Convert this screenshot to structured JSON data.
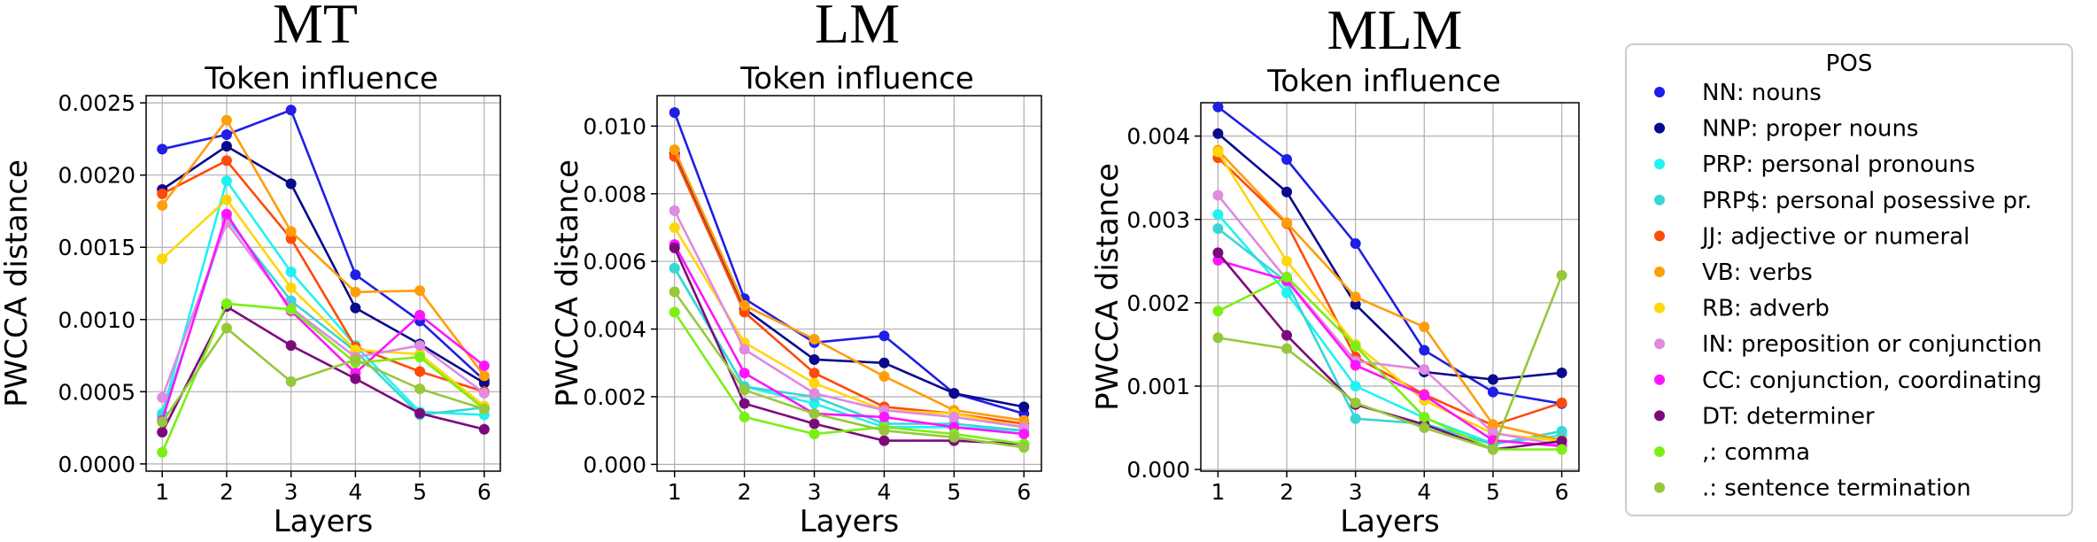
{
  "legend": {
    "title": "POS",
    "entries": [
      {
        "label": "NN: nouns",
        "color": "#1f1fe6"
      },
      {
        "label": "NNP: proper nouns",
        "color": "#0a0a8c"
      },
      {
        "label": "PRP: personal pronouns",
        "color": "#1ff2f2"
      },
      {
        "label": "PRP$: personal posessive pr.",
        "color": "#38d6d6"
      },
      {
        "label": "JJ: adjective or numeral",
        "color": "#ff4a0a"
      },
      {
        "label": "VB: verbs",
        "color": "#ff9d0a"
      },
      {
        "label": "RB: adverb",
        "color": "#ffd60a"
      },
      {
        "label": "IN: preposition or conjunction",
        "color": "#e08ae0"
      },
      {
        "label": "CC: conjunction, coordinating",
        "color": "#ff14ff"
      },
      {
        "label": "DT: determiner",
        "color": "#7d0a7d"
      },
      {
        "label": ",: comma",
        "color": "#7aef14"
      },
      {
        "label": ".: sentence termination",
        "color": "#96c83a"
      }
    ]
  },
  "chart_data": [
    {
      "type": "line",
      "title": "MT",
      "subtitle": "Token influence",
      "xlabel": "Layers",
      "ylabel": "PWCCA distance",
      "x": [
        1,
        2,
        3,
        4,
        5,
        6
      ],
      "xticks": [
        "1",
        "2",
        "3",
        "4",
        "5",
        "6"
      ],
      "ylim": [
        -5e-05,
        0.00255
      ],
      "yticks": [
        0.0,
        0.0005,
        0.001,
        0.0015,
        0.002,
        0.0025
      ],
      "ytick_labels": [
        "0.0000",
        "0.0005",
        "0.0010",
        "0.0015",
        "0.0020",
        "0.0025"
      ],
      "grid": true,
      "series": [
        {
          "name": "NN: nouns",
          "values": [
            0.00218,
            0.00228,
            0.00245,
            0.00131,
            0.00099,
            0.00058
          ]
        },
        {
          "name": "NNP: proper nouns",
          "values": [
            0.0019,
            0.0022,
            0.00194,
            0.00108,
            0.00083,
            0.00056
          ]
        },
        {
          "name": "PRP: personal pronouns",
          "values": [
            0.00035,
            0.00196,
            0.00133,
            0.00082,
            0.00036,
            0.00034
          ]
        },
        {
          "name": "PRP$: personal posessive pr.",
          "values": [
            0.00033,
            0.0017,
            0.00113,
            0.00078,
            0.00034,
            0.00039
          ]
        },
        {
          "name": "JJ: adjective or numeral",
          "values": [
            0.00187,
            0.0021,
            0.00156,
            0.00081,
            0.00064,
            0.0005
          ]
        },
        {
          "name": "VB: verbs",
          "values": [
            0.00179,
            0.00238,
            0.00161,
            0.00119,
            0.0012,
            0.00061
          ]
        },
        {
          "name": "RB: adverb",
          "values": [
            0.00142,
            0.00183,
            0.00122,
            0.00079,
            0.00076,
            0.0004
          ]
        },
        {
          "name": "IN: preposition or conjunction",
          "values": [
            0.00046,
            0.00167,
            0.00108,
            0.00074,
            0.00082,
            0.00049
          ]
        },
        {
          "name": "CC: conjunction, coordinating",
          "values": [
            0.0003,
            0.00173,
            0.00106,
            0.00063,
            0.00103,
            0.00068
          ]
        },
        {
          "name": "DT: determiner",
          "values": [
            0.00022,
            0.00109,
            0.00082,
            0.00059,
            0.00035,
            0.00024
          ]
        },
        {
          "name": ",: comma",
          "values": [
            8e-05,
            0.00111,
            0.00107,
            0.0007,
            0.00074,
            0.00038
          ]
        },
        {
          "name": ".: sentence termination",
          "values": [
            0.00029,
            0.00094,
            0.00057,
            0.00072,
            0.00052,
            0.00038
          ]
        }
      ]
    },
    {
      "type": "line",
      "title": "LM",
      "subtitle": "Token influence",
      "xlabel": "Layers",
      "ylabel": "PWCCA distance",
      "x": [
        1,
        2,
        3,
        4,
        5,
        6
      ],
      "xticks": [
        "1",
        "2",
        "3",
        "4",
        "5",
        "6"
      ],
      "ylim": [
        -0.0002,
        0.0109
      ],
      "yticks": [
        0.0,
        0.002,
        0.004,
        0.006,
        0.008,
        0.01
      ],
      "ytick_labels": [
        "0.000",
        "0.002",
        "0.004",
        "0.006",
        "0.008",
        "0.010"
      ],
      "grid": true,
      "series": [
        {
          "name": "NN: nouns",
          "values": [
            0.0104,
            0.0049,
            0.0036,
            0.0038,
            0.0021,
            0.0015
          ]
        },
        {
          "name": "NNP: proper nouns",
          "values": [
            0.0092,
            0.0046,
            0.0031,
            0.003,
            0.0021,
            0.0017
          ]
        },
        {
          "name": "PRP: personal pronouns",
          "values": [
            0.0058,
            0.0023,
            0.0018,
            0.0011,
            0.0011,
            0.001
          ]
        },
        {
          "name": "PRP$: personal posessive pr.",
          "values": [
            0.0058,
            0.0023,
            0.002,
            0.0012,
            0.0012,
            0.001
          ]
        },
        {
          "name": "JJ: adjective or numeral",
          "values": [
            0.0091,
            0.0045,
            0.0027,
            0.0017,
            0.0015,
            0.0012
          ]
        },
        {
          "name": "VB: verbs",
          "values": [
            0.0093,
            0.0047,
            0.0037,
            0.0026,
            0.0016,
            0.0013
          ]
        },
        {
          "name": "RB: adverb",
          "values": [
            0.007,
            0.0036,
            0.0024,
            0.0016,
            0.0015,
            0.0011
          ]
        },
        {
          "name": "IN: preposition or conjunction",
          "values": [
            0.0075,
            0.0034,
            0.0021,
            0.0016,
            0.0014,
            0.0011
          ]
        },
        {
          "name": "CC: conjunction, coordinating",
          "values": [
            0.0065,
            0.0027,
            0.0015,
            0.0014,
            0.0011,
            0.0009
          ]
        },
        {
          "name": "DT: determiner",
          "values": [
            0.0064,
            0.0018,
            0.0012,
            0.0007,
            0.0007,
            0.0006
          ]
        },
        {
          "name": ",: comma",
          "values": [
            0.0045,
            0.0014,
            0.0009,
            0.0011,
            0.0009,
            0.0006
          ]
        },
        {
          "name": ".: sentence termination",
          "values": [
            0.0051,
            0.0022,
            0.0015,
            0.001,
            0.0008,
            0.0005
          ]
        }
      ]
    },
    {
      "type": "line",
      "title": "MLM",
      "subtitle": "Token influence",
      "xlabel": "Layers",
      "ylabel": "PWCCA distance",
      "x": [
        1,
        2,
        3,
        4,
        5,
        6
      ],
      "xticks": [
        "1",
        "2",
        "3",
        "4",
        "5",
        "6"
      ],
      "ylim": [
        -2e-05,
        0.0044
      ],
      "yticks": [
        0.0,
        0.001,
        0.002,
        0.003,
        0.004
      ],
      "ytick_labels": [
        "0.000",
        "0.001",
        "0.002",
        "0.003",
        "0.004"
      ],
      "grid": true,
      "series": [
        {
          "name": "NN: nouns",
          "values": [
            0.00435,
            0.00372,
            0.00271,
            0.00143,
            0.00093,
            0.00079
          ]
        },
        {
          "name": "NNP: proper nouns",
          "values": [
            0.00403,
            0.00333,
            0.00198,
            0.00117,
            0.00108,
            0.00116
          ]
        },
        {
          "name": "PRP: personal pronouns",
          "values": [
            0.00306,
            0.00212,
            0.001,
            0.00062,
            0.00031,
            0.00041
          ]
        },
        {
          "name": "PRP$: personal posessive pr.",
          "values": [
            0.00289,
            0.00225,
            0.00061,
            0.00055,
            0.0003,
            0.00046
          ]
        },
        {
          "name": "JJ: adjective or numeral",
          "values": [
            0.00374,
            0.00295,
            0.00135,
            0.0009,
            0.00053,
            0.0008
          ]
        },
        {
          "name": "VB: verbs",
          "values": [
            0.00383,
            0.00296,
            0.00207,
            0.00171,
            0.00054,
            0.00035
          ]
        },
        {
          "name": "RB: adverb",
          "values": [
            0.00381,
            0.0025,
            0.0015,
            0.00083,
            0.00043,
            0.00034
          ]
        },
        {
          "name": "IN: preposition or conjunction",
          "values": [
            0.00329,
            0.00228,
            0.0013,
            0.0012,
            0.00044,
            0.00029
          ]
        },
        {
          "name": "CC: conjunction, coordinating",
          "values": [
            0.00251,
            0.00227,
            0.00125,
            0.00089,
            0.00035,
            0.00028
          ]
        },
        {
          "name": "DT: determiner",
          "values": [
            0.0026,
            0.00161,
            0.00078,
            0.00054,
            0.00024,
            0.00034
          ]
        },
        {
          "name": ",: comma",
          "values": [
            0.0019,
            0.00231,
            0.00148,
            0.00063,
            0.00024,
            0.00024
          ]
        },
        {
          "name": ".: sentence termination",
          "values": [
            0.00158,
            0.00145,
            0.0008,
            0.0005,
            0.00024,
            0.00233
          ]
        }
      ]
    }
  ]
}
